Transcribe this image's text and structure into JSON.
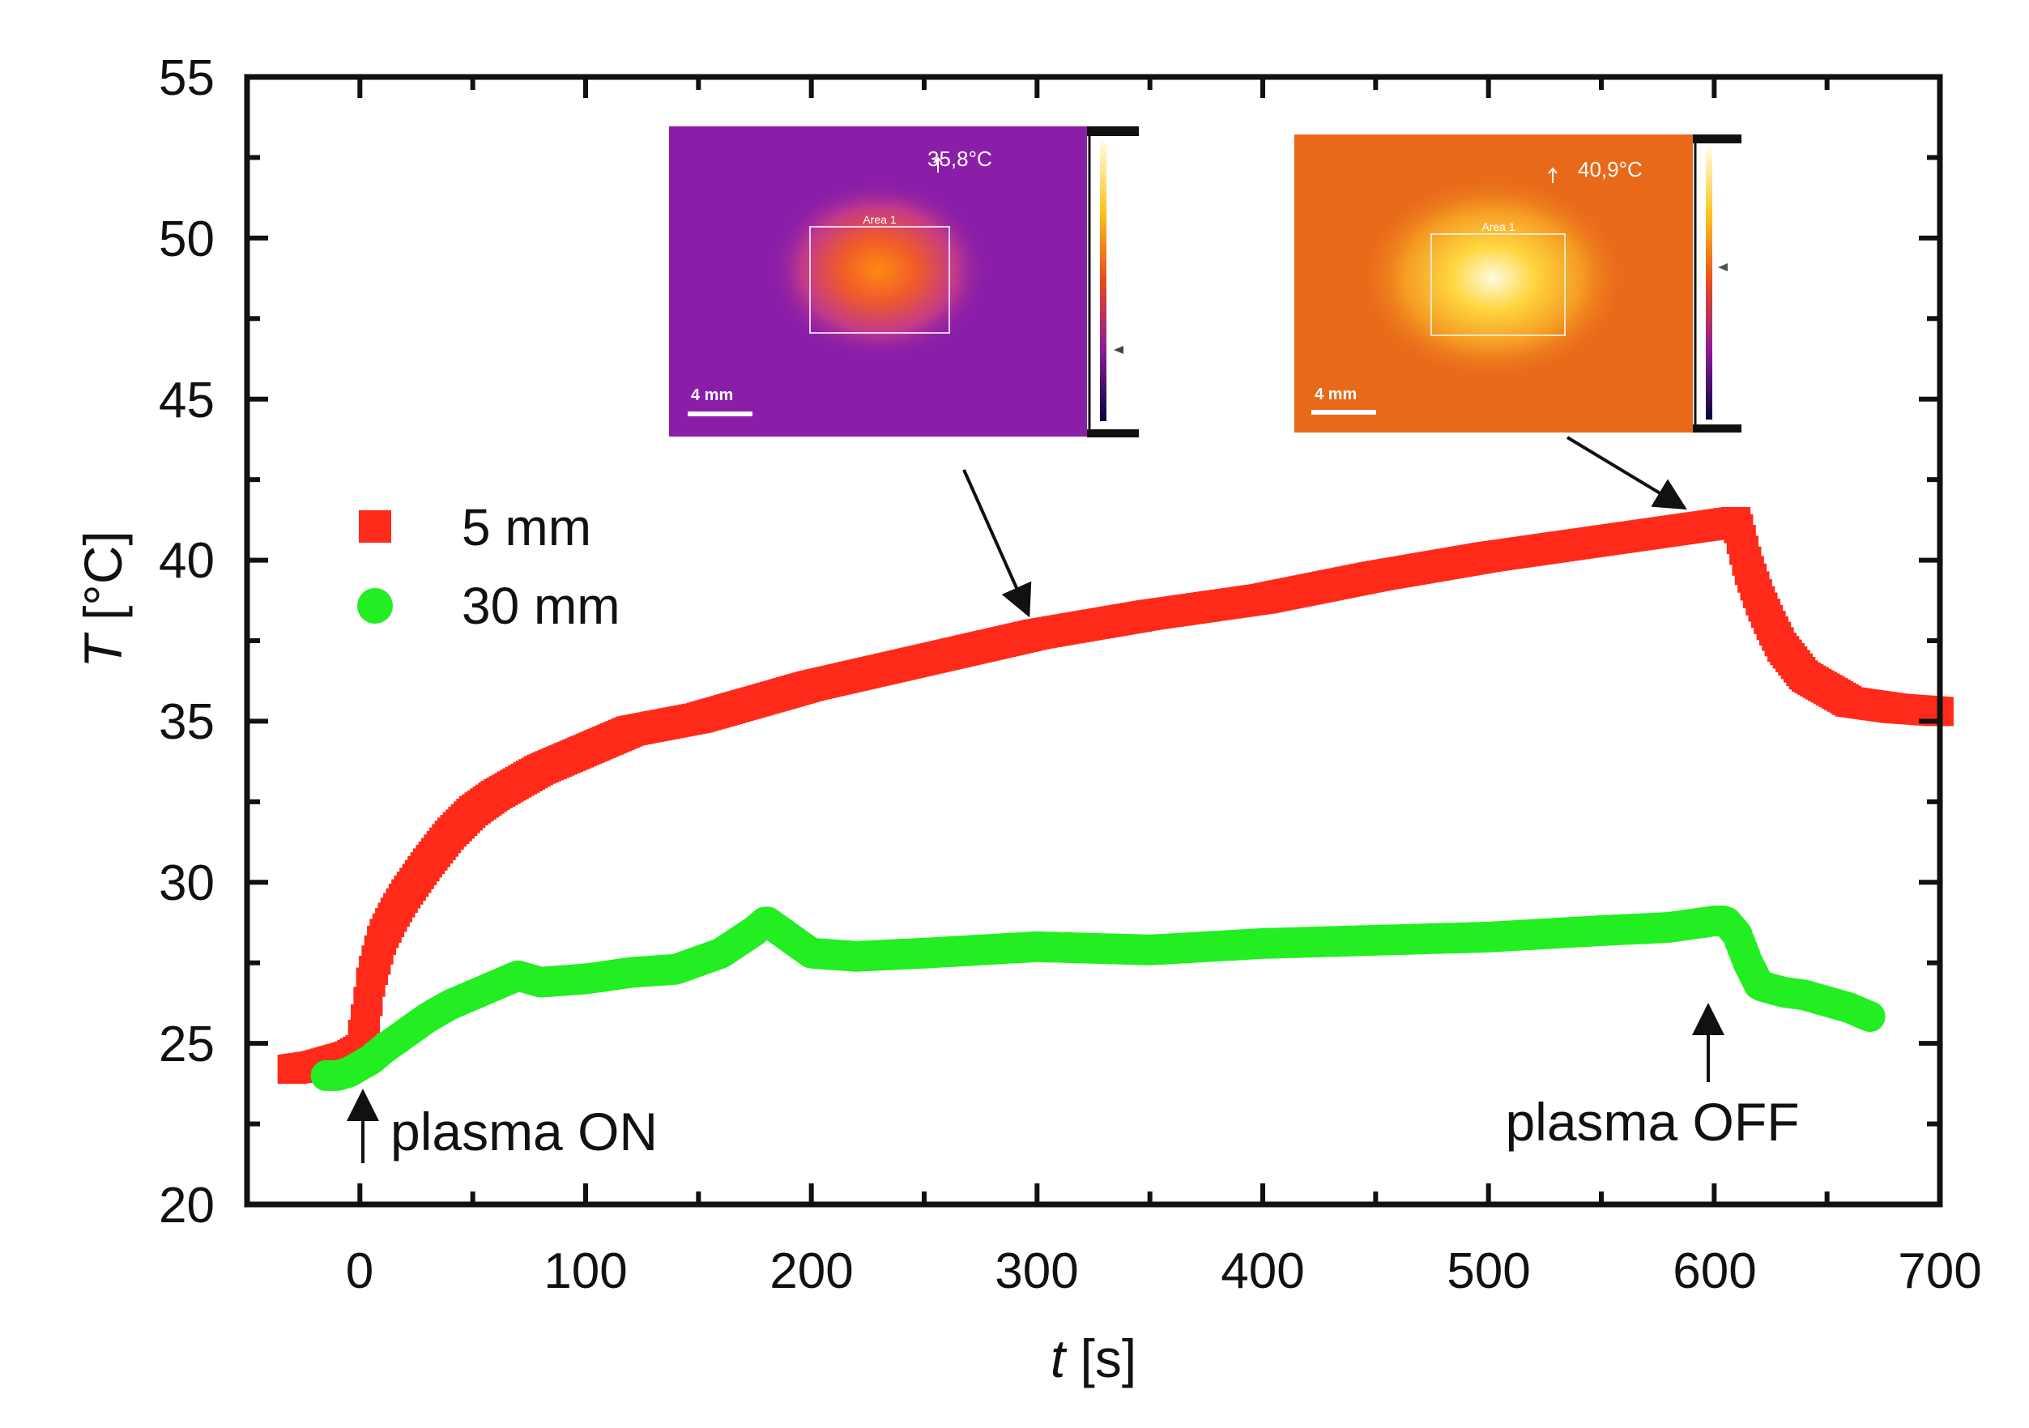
{
  "chart_data": {
    "type": "scatter",
    "xlabel_var": "t",
    "xlabel_unit": " [s]",
    "ylabel_var": "T",
    "ylabel_unit": " [°C]",
    "xlim": [
      -50,
      700
    ],
    "ylim": [
      20,
      55
    ],
    "xticks": [
      0,
      100,
      200,
      300,
      400,
      500,
      600,
      700
    ],
    "yticks": [
      20,
      25,
      30,
      35,
      40,
      45,
      50,
      55
    ],
    "xtick_labels": [
      "0",
      "100",
      "200",
      "300",
      "400",
      "500",
      "600",
      "700"
    ],
    "ytick_labels": [
      "20",
      "25",
      "30",
      "35",
      "40",
      "45",
      "50",
      "55"
    ],
    "legend_position": "middle-left",
    "series": [
      {
        "name": "5 mm",
        "color": "#ff2a1a",
        "marker": "square",
        "x": [
          -30,
          -20,
          -10,
          -5,
          0,
          3,
          5,
          8,
          10,
          15,
          20,
          25,
          30,
          40,
          50,
          60,
          70,
          80,
          100,
          120,
          150,
          180,
          200,
          250,
          300,
          350,
          400,
          450,
          500,
          550,
          580,
          600,
          610,
          615,
          620,
          625,
          630,
          640,
          650,
          660,
          680,
          700
        ],
        "y": [
          24.2,
          24.3,
          24.5,
          24.6,
          24.8,
          26.0,
          27.0,
          27.8,
          28.3,
          29.0,
          29.6,
          30.1,
          30.6,
          31.5,
          32.2,
          32.7,
          33.1,
          33.5,
          34.1,
          34.7,
          35.1,
          35.7,
          36.1,
          36.9,
          37.7,
          38.3,
          38.8,
          39.5,
          40.1,
          40.6,
          40.9,
          41.1,
          41.2,
          39.8,
          38.8,
          38.0,
          37.3,
          36.4,
          36.0,
          35.6,
          35.4,
          35.3
        ]
      },
      {
        "name": "30 mm",
        "color": "#22ee22",
        "marker": "circle",
        "x": [
          -15,
          -10,
          -5,
          0,
          5,
          10,
          20,
          30,
          40,
          50,
          60,
          70,
          80,
          100,
          120,
          140,
          160,
          175,
          180,
          190,
          200,
          220,
          250,
          300,
          350,
          400,
          450,
          500,
          550,
          580,
          600,
          605,
          610,
          615,
          620,
          630,
          640,
          660,
          670
        ],
        "y": [
          24.0,
          24.0,
          24.1,
          24.3,
          24.5,
          24.8,
          25.3,
          25.8,
          26.2,
          26.5,
          26.8,
          27.1,
          26.9,
          27.0,
          27.2,
          27.3,
          27.8,
          28.5,
          28.8,
          28.3,
          27.8,
          27.7,
          27.8,
          28.0,
          27.9,
          28.1,
          28.2,
          28.3,
          28.5,
          28.6,
          28.8,
          28.8,
          28.4,
          27.5,
          26.8,
          26.6,
          26.5,
          26.1,
          25.8
        ]
      }
    ],
    "annotations": {
      "plasma_on": {
        "text": "plasma ON",
        "x": 0
      },
      "plasma_off": {
        "text": "plasma OFF",
        "x": 600
      }
    },
    "insets": [
      {
        "temp_label": "35,8°C",
        "area_label": "Area 1",
        "scale_label": "4 mm",
        "points_to_x": 295,
        "points_to_y": 37.8
      },
      {
        "temp_label": "40,9°C",
        "area_label": "Area 1",
        "scale_label": "4 mm",
        "points_to_x": 590,
        "points_to_y": 41.2
      }
    ]
  },
  "colors": {
    "axis": "#111111",
    "series_5mm": "#ff2a1a",
    "series_30mm": "#22ee22",
    "inset1_bg": "#8b1ea8",
    "inset2_bg": "#e8691a"
  }
}
